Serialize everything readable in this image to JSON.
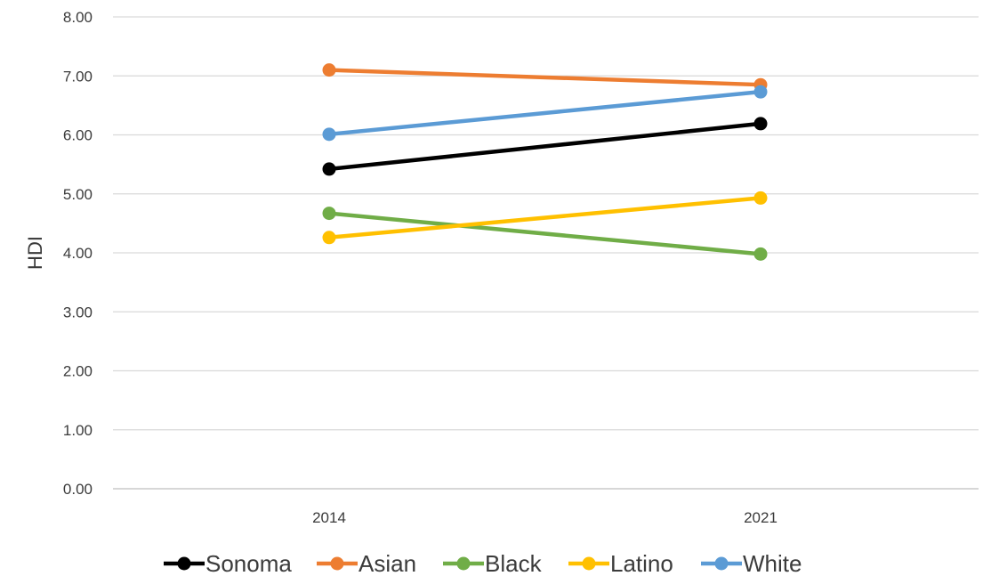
{
  "chart_data": {
    "type": "line",
    "title": "",
    "xlabel": "",
    "ylabel": "HDI",
    "categories": [
      "2014",
      "2021"
    ],
    "ylim": [
      0,
      8
    ],
    "y_ticks": [
      "0.00",
      "1.00",
      "2.00",
      "3.00",
      "4.00",
      "5.00",
      "6.00",
      "7.00",
      "8.00"
    ],
    "grid": "horizontal",
    "legend_position": "bottom",
    "series": [
      {
        "name": "Sonoma",
        "color": "#000000",
        "values": [
          5.42,
          6.19
        ]
      },
      {
        "name": "Asian",
        "color": "#ED7D31",
        "values": [
          7.1,
          6.85
        ]
      },
      {
        "name": "Black",
        "color": "#70AD47",
        "values": [
          4.67,
          3.98
        ]
      },
      {
        "name": "Latino",
        "color": "#FFC000",
        "values": [
          4.26,
          4.93
        ]
      },
      {
        "name": "White",
        "color": "#5B9BD5",
        "values": [
          6.01,
          6.73
        ]
      }
    ]
  }
}
